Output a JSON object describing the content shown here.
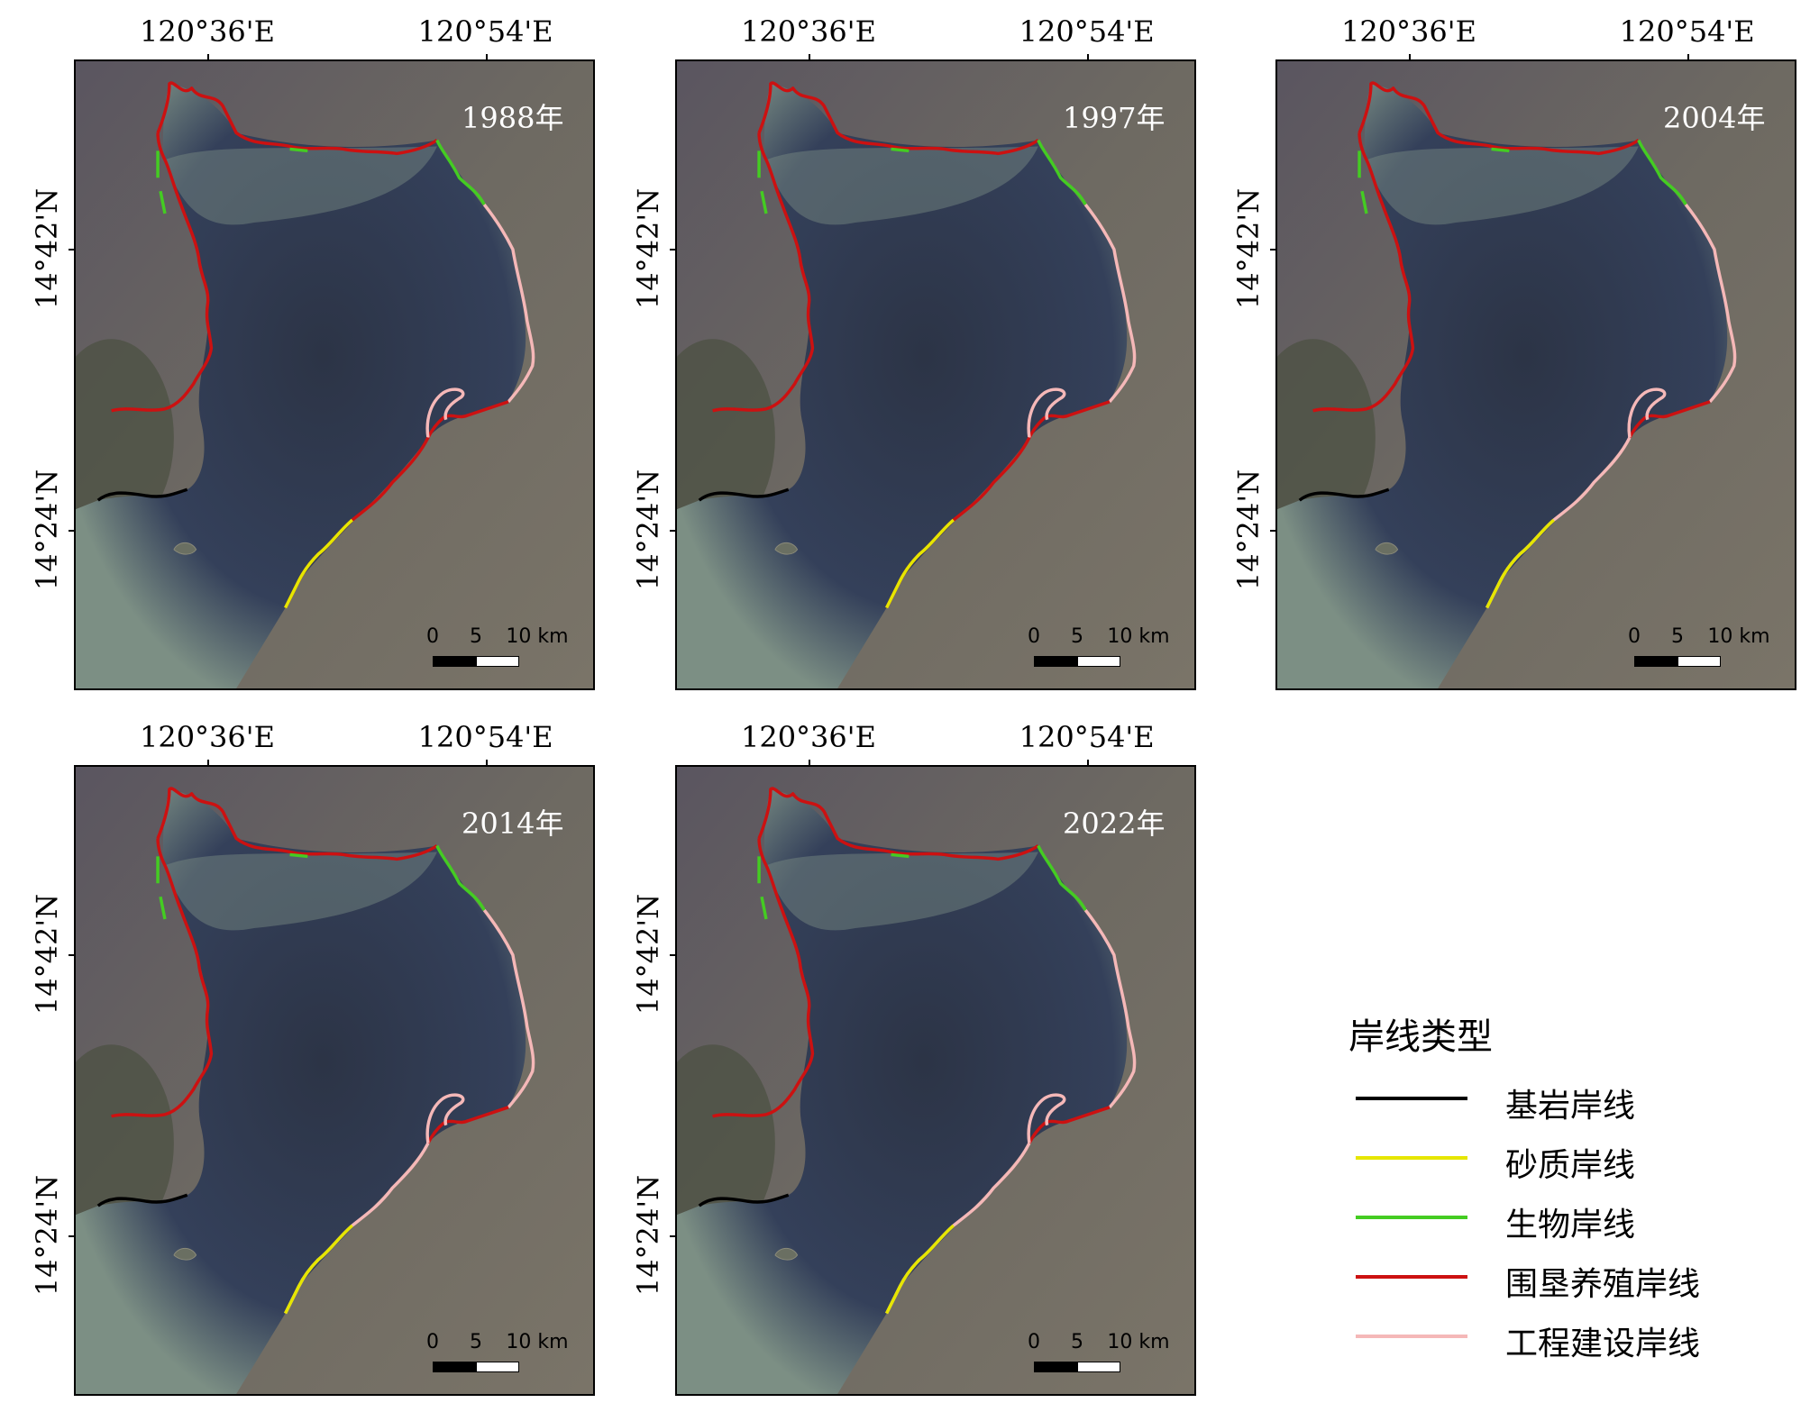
{
  "panels": [
    {
      "year": "1988年",
      "lon_labels": [
        "120°36'E",
        "120°54'E"
      ],
      "lat_labels": [
        "14°42'N",
        "14°24'N"
      ],
      "scale": {
        "labels": [
          "0",
          "5",
          "10 km"
        ]
      }
    },
    {
      "year": "1997年",
      "lon_labels": [
        "120°36'E",
        "120°54'E"
      ],
      "lat_labels": [
        "14°42'N",
        "14°24'N"
      ],
      "scale": {
        "labels": [
          "0",
          "5",
          "10 km"
        ]
      }
    },
    {
      "year": "2004年",
      "lon_labels": [
        "120°36'E",
        "120°54'E"
      ],
      "lat_labels": [
        "14°42'N",
        "14°24'N"
      ],
      "scale": {
        "labels": [
          "0",
          "5",
          "10 km"
        ]
      }
    },
    {
      "year": "2014年",
      "lon_labels": [
        "120°36'E",
        "120°54'E"
      ],
      "lat_labels": [
        "14°42'N",
        "14°24'N"
      ],
      "scale": {
        "labels": [
          "0",
          "5",
          "10 km"
        ]
      }
    },
    {
      "year": "2022年",
      "lon_labels": [
        "120°36'E",
        "120°54'E"
      ],
      "lat_labels": [
        "14°42'N",
        "14°24'N"
      ],
      "scale": {
        "labels": [
          "0",
          "5",
          "10 km"
        ]
      }
    }
  ],
  "legend": {
    "title": "岸线类型",
    "items": [
      {
        "label": "基岩岸线",
        "color": "#000000"
      },
      {
        "label": "砂质岸线",
        "color": "#e6e600"
      },
      {
        "label": "生物岸线",
        "color": "#44cc22"
      },
      {
        "label": "围垦养殖岸线",
        "color": "#cc1111"
      },
      {
        "label": "工程建设岸线",
        "color": "#f5b8b8"
      }
    ]
  },
  "colors": {
    "land": "#6e6a62",
    "water_deep": "#2c3446",
    "water_turbid": "#7c8f84"
  }
}
